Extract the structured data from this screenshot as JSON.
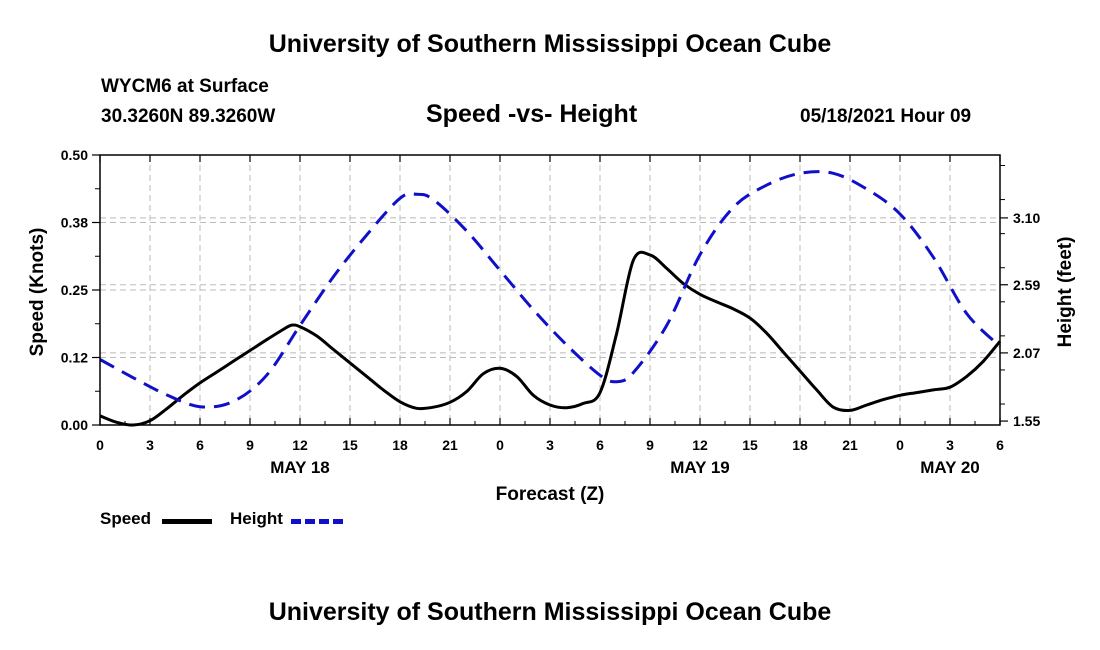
{
  "header": {
    "title": "University of Southern Mississippi Ocean Cube",
    "station": "WYCM6 at Surface",
    "coords": "30.3260N  89.3260W",
    "subtitle": "Speed -vs- Height",
    "datetime": "05/18/2021 Hour 09"
  },
  "footer": {
    "title": "University of Southern Mississippi Ocean Cube"
  },
  "legend": {
    "speed_label": "Speed",
    "height_label": "Height"
  },
  "colors": {
    "speed": "#000000",
    "height": "#1010c8",
    "grid": "#bbbbbb"
  },
  "chart_data": {
    "type": "line",
    "xlabel": "Forecast (Z)",
    "ylabel": "Speed (Knots)",
    "y2label": "Height (feet)",
    "xlim": [
      0,
      54
    ],
    "ylim": [
      0,
      0.5
    ],
    "y2lim": [
      1.52,
      3.58
    ],
    "x_ticks": [
      0,
      3,
      6,
      9,
      12,
      15,
      18,
      21,
      24,
      27,
      30,
      33,
      36,
      39,
      42,
      45,
      48,
      51,
      54
    ],
    "x_tick_labels": [
      "0",
      "3",
      "6",
      "9",
      "12",
      "15",
      "18",
      "21",
      "0",
      "3",
      "6",
      "9",
      "12",
      "15",
      "18",
      "21",
      "0",
      "3",
      "6"
    ],
    "date_labels": [
      {
        "x": 12,
        "label": "MAY 18"
      },
      {
        "x": 36,
        "label": "MAY 19"
      },
      {
        "x": 51,
        "label": "MAY 20"
      }
    ],
    "y_ticks": [
      0.0,
      0.125,
      0.25,
      0.375,
      0.5
    ],
    "y_tick_labels": [
      "0.00",
      "0.12",
      "0.25",
      "0.38",
      "0.50"
    ],
    "y2_ticks": [
      1.55,
      2.07,
      2.59,
      3.1
    ],
    "y2_tick_labels": [
      "1.55",
      "2.07",
      "2.59",
      "3.10"
    ],
    "grid": true,
    "series": [
      {
        "name": "Speed",
        "axis": "left",
        "style": "solid",
        "x": [
          0,
          1,
          2,
          3,
          4,
          5,
          6,
          7,
          8,
          9,
          10,
          11,
          11.5,
          12,
          13,
          14,
          15,
          16,
          17,
          18,
          19,
          20,
          21,
          22,
          23,
          24,
          25,
          26,
          27,
          28,
          29,
          30,
          31,
          32,
          33,
          34,
          35,
          36,
          37,
          38,
          39,
          40,
          41,
          42,
          43,
          44,
          45,
          46,
          47,
          48,
          49,
          50,
          51,
          52,
          53,
          54
        ],
        "values": [
          0.017,
          0.005,
          0.0,
          0.008,
          0.03,
          0.055,
          0.078,
          0.098,
          0.118,
          0.138,
          0.158,
          0.177,
          0.185,
          0.182,
          0.165,
          0.14,
          0.115,
          0.09,
          0.065,
          0.043,
          0.031,
          0.033,
          0.042,
          0.062,
          0.095,
          0.105,
          0.09,
          0.055,
          0.037,
          0.032,
          0.04,
          0.06,
          0.17,
          0.305,
          0.315,
          0.29,
          0.262,
          0.242,
          0.228,
          0.215,
          0.198,
          0.17,
          0.135,
          0.1,
          0.065,
          0.033,
          0.027,
          0.037,
          0.047,
          0.055,
          0.06,
          0.065,
          0.07,
          0.09,
          0.118,
          0.155
        ]
      },
      {
        "name": "Height",
        "axis": "right",
        "style": "dashed",
        "x": [
          0,
          2,
          4,
          6,
          8,
          10,
          12,
          14,
          16,
          18,
          19,
          20,
          22,
          24,
          26,
          28,
          30,
          31,
          32,
          34,
          36,
          38,
          40,
          42,
          44,
          46,
          48,
          50,
          52,
          54
        ],
        "values": [
          2.02,
          1.88,
          1.75,
          1.66,
          1.7,
          1.9,
          2.28,
          2.65,
          2.97,
          3.25,
          3.28,
          3.24,
          3.0,
          2.7,
          2.4,
          2.13,
          1.9,
          1.85,
          1.92,
          2.28,
          2.82,
          3.18,
          3.35,
          3.44,
          3.44,
          3.32,
          3.13,
          2.8,
          2.37,
          2.12
        ]
      }
    ]
  }
}
